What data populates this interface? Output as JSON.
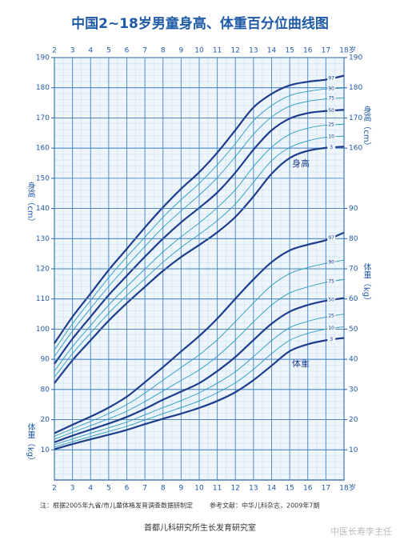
{
  "title": "中国2~18岁男童身高、体重百分位曲线图",
  "chart_data": [
    {
      "type": "line",
      "label": "身高",
      "y_label": "身高（cm）",
      "x_unit": "岁",
      "x": [
        2,
        3,
        4,
        5,
        6,
        7,
        8,
        9,
        10,
        11,
        12,
        13,
        14,
        15,
        16,
        17,
        18
      ],
      "xlim": [
        2,
        18
      ],
      "xticks": [
        2,
        3,
        4,
        5,
        6,
        7,
        8,
        9,
        10,
        11,
        12,
        13,
        14,
        15,
        16,
        17,
        18
      ],
      "ylim": [
        50,
        190
      ],
      "yticks": [
        80,
        90,
        100,
        110,
        120,
        130,
        140,
        150,
        160,
        170,
        180,
        190
      ],
      "y2lim": [
        50,
        190
      ],
      "y2ticks": [
        160,
        170,
        180,
        190
      ],
      "grid": true,
      "series": [
        {
          "name": "3",
          "color": "#1f3d8c",
          "values": [
            82.1,
            89.7,
            96.3,
            102.8,
            108.6,
            114.0,
            119.3,
            123.9,
            127.9,
            132.1,
            137.2,
            144.0,
            151.5,
            156.7,
            159.1,
            160.1,
            160.5
          ]
        },
        {
          "name": "10",
          "color": "#2f9bbf",
          "values": [
            84.1,
            91.9,
            98.7,
            105.3,
            111.2,
            116.7,
            122.2,
            127.1,
            131.4,
            136.0,
            141.5,
            148.7,
            155.8,
            160.2,
            162.4,
            163.6,
            163.9
          ]
        },
        {
          "name": "25",
          "color": "#2f9bbf",
          "values": [
            86.1,
            94.2,
            101.2,
            108.0,
            114.1,
            119.9,
            125.6,
            130.6,
            135.2,
            140.3,
            146.2,
            153.9,
            160.3,
            164.6,
            166.6,
            167.6,
            167.9
          ]
        },
        {
          "name": "50",
          "color": "#1f3d8c",
          "values": [
            88.5,
            96.8,
            104.1,
            111.3,
            117.7,
            124.0,
            130.0,
            135.4,
            140.2,
            145.3,
            151.9,
            159.5,
            165.9,
            169.8,
            171.6,
            172.3,
            172.7
          ]
        },
        {
          "name": "75",
          "color": "#2f9bbf",
          "values": [
            90.9,
            99.4,
            106.9,
            114.2,
            120.9,
            127.4,
            133.7,
            139.2,
            144.4,
            150.2,
            157.2,
            164.6,
            170.3,
            173.9,
            175.5,
            176.3,
            176.7
          ]
        },
        {
          "name": "90",
          "color": "#2f9bbf",
          "values": [
            93.1,
            101.8,
            109.5,
            117.1,
            124.0,
            130.5,
            137.1,
            142.9,
            148.3,
            154.5,
            161.5,
            169.1,
            174.1,
            177.4,
            178.8,
            179.6,
            179.9
          ]
        },
        {
          "name": "97",
          "color": "#1f3d8c",
          "values": [
            95.3,
            104.1,
            111.8,
            119.6,
            126.6,
            133.7,
            140.4,
            146.5,
            152.0,
            158.5,
            166.0,
            173.5,
            178.0,
            180.8,
            182.0,
            182.7,
            184.0
          ]
        }
      ]
    },
    {
      "type": "line",
      "label": "体重",
      "y_label": "体重（kg）",
      "x": [
        2,
        3,
        4,
        5,
        6,
        7,
        8,
        9,
        10,
        11,
        12,
        13,
        14,
        15,
        16,
        17,
        18
      ],
      "ylim": [
        0,
        140
      ],
      "yticks": [
        10,
        20
      ],
      "y2lim": [
        0,
        140
      ],
      "y2ticks": [
        10,
        20,
        30,
        40,
        50,
        60,
        70,
        80,
        90
      ],
      "series": [
        {
          "name": "3",
          "color": "#1f3d8c",
          "values": [
            10.2,
            11.9,
            13.5,
            15.0,
            16.6,
            18.5,
            20.3,
            22.0,
            23.9,
            26.2,
            29.1,
            33.1,
            37.9,
            42.7,
            45.0,
            46.3,
            47.1
          ]
        },
        {
          "name": "10",
          "color": "#2f9bbf",
          "values": [
            10.9,
            12.7,
            14.4,
            16.1,
            17.8,
            19.9,
            22.0,
            24.0,
            26.2,
            28.9,
            32.2,
            36.7,
            41.9,
            46.3,
            48.6,
            50.0,
            50.8
          ]
        },
        {
          "name": "25",
          "color": "#2f9bbf",
          "values": [
            11.7,
            13.6,
            15.5,
            17.3,
            19.2,
            21.6,
            24.0,
            26.3,
            28.9,
            32.1,
            35.9,
            40.9,
            46.2,
            50.5,
            52.6,
            54.0,
            55.0
          ]
        },
        {
          "name": "50",
          "color": "#1f3d8c",
          "values": [
            12.5,
            14.7,
            16.7,
            18.7,
            20.9,
            23.6,
            26.6,
            29.3,
            32.1,
            36.1,
            40.8,
            46.4,
            51.8,
            55.8,
            58.0,
            59.4,
            60.3
          ]
        },
        {
          "name": "75",
          "color": "#2f9bbf",
          "values": [
            13.5,
            15.8,
            18.0,
            20.3,
            22.8,
            26.0,
            29.5,
            33.0,
            36.5,
            41.0,
            46.4,
            52.4,
            58.0,
            62.0,
            64.0,
            65.5,
            66.5
          ]
        },
        {
          "name": "90",
          "color": "#2f9bbf",
          "values": [
            14.5,
            17.0,
            19.4,
            22.0,
            25.0,
            28.8,
            33.1,
            37.3,
            41.5,
            46.5,
            52.5,
            58.7,
            64.5,
            68.4,
            70.4,
            71.8,
            72.9
          ]
        },
        {
          "name": "97",
          "color": "#1f3d8c",
          "values": [
            15.5,
            18.3,
            21.0,
            24.0,
            27.6,
            32.4,
            37.4,
            42.6,
            47.7,
            53.5,
            60.1,
            66.5,
            72.2,
            76.1,
            78.0,
            79.5,
            82.0
          ]
        }
      ]
    }
  ],
  "notes": [
    "注：根据2005年九省/市儿童体格发育调查数据研制定",
    "参考文献：中华儿科杂志，2009年7期"
  ],
  "footer": "首都儿科研究所生长发育研究室",
  "watermark": "中医长寿李主任"
}
